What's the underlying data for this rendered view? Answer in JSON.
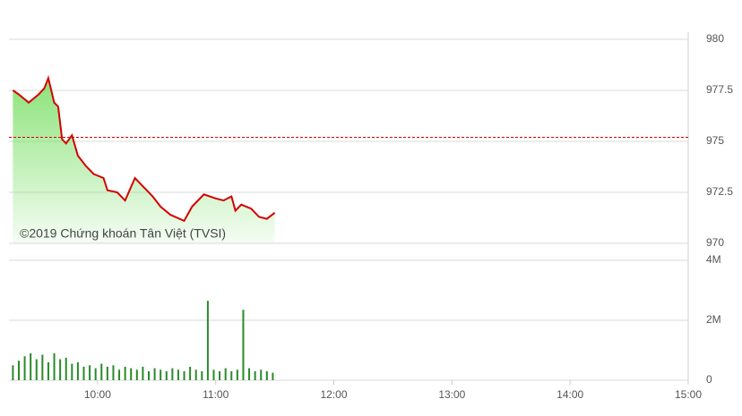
{
  "chart_data": [
    {
      "type": "line",
      "annotation": "©2019 Chứng khoán Tân Việt (TVSI)",
      "x": [
        557,
        560,
        565,
        570,
        573,
        575,
        578,
        580,
        582,
        584,
        587,
        590,
        594,
        598,
        603,
        605,
        610,
        614,
        619,
        623,
        628,
        632,
        637,
        644,
        648,
        654,
        660,
        664,
        668,
        670,
        673,
        678,
        682,
        686,
        690
      ],
      "values": [
        977.5,
        977.3,
        976.9,
        977.3,
        977.6,
        978.1,
        976.9,
        976.7,
        975.1,
        974.9,
        975.3,
        974.3,
        973.8,
        973.4,
        973.2,
        972.6,
        972.5,
        972.1,
        973.2,
        972.8,
        972.3,
        971.8,
        971.4,
        971.1,
        971.8,
        972.4,
        972.2,
        972.1,
        972.3,
        971.6,
        971.9,
        971.7,
        971.3,
        971.2,
        971.5
      ],
      "color": "#d40000",
      "fill_color": "#7ee06a",
      "xlim": [
        555,
        900
      ],
      "ylim": [
        970,
        980
      ],
      "yticks": [
        970,
        972.5,
        975,
        977.5,
        980
      ],
      "grid": true,
      "reference_line": {
        "value": 975.2,
        "color": "#d40000"
      }
    },
    {
      "type": "bar",
      "x": [
        557,
        560,
        563,
        566,
        569,
        572,
        575,
        578,
        581,
        584,
        587,
        590,
        593,
        596,
        599,
        602,
        605,
        608,
        611,
        614,
        617,
        620,
        623,
        626,
        629,
        632,
        635,
        638,
        641,
        644,
        647,
        650,
        653,
        656,
        659,
        662,
        665,
        668,
        671,
        674,
        677,
        680,
        683,
        686,
        689
      ],
      "values": [
        500000,
        650000,
        800000,
        900000,
        700000,
        850000,
        600000,
        900000,
        700000,
        750000,
        550000,
        600000,
        450000,
        500000,
        400000,
        550000,
        450000,
        500000,
        350000,
        450000,
        400000,
        350000,
        450000,
        300000,
        400000,
        350000,
        300000,
        400000,
        350000,
        300000,
        450000,
        350000,
        300000,
        2650000,
        350000,
        300000,
        400000,
        300000,
        350000,
        2350000,
        400000,
        300000,
        350000,
        300000,
        250000
      ],
      "color": "#2a8a2a",
      "xlim": [
        555,
        900
      ],
      "ylim": [
        0,
        4000000
      ],
      "yticks": [
        0,
        {
          "value": 2000000,
          "label": "2M"
        },
        {
          "value": 4000000,
          "label": "4M"
        }
      ],
      "xticks": [
        {
          "value": 600,
          "label": "10:00"
        },
        {
          "value": 660,
          "label": "11:00"
        },
        {
          "value": 720,
          "label": "12:00"
        },
        {
          "value": 780,
          "label": "13:00"
        },
        {
          "value": 840,
          "label": "14:00"
        },
        {
          "value": 900,
          "label": "15:00"
        }
      ],
      "grid": true
    }
  ]
}
